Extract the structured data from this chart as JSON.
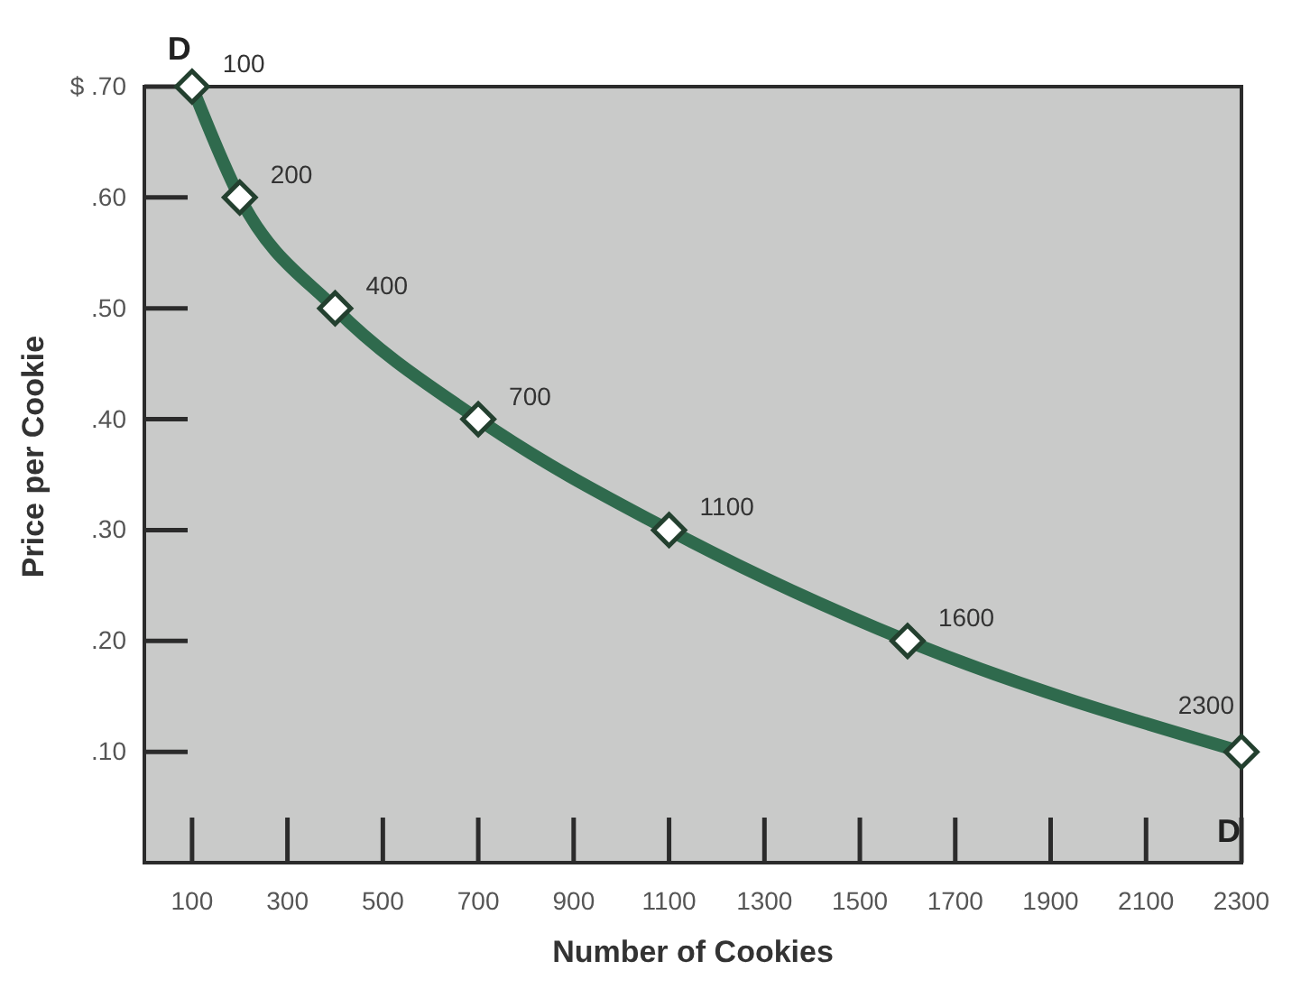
{
  "chart_data": {
    "type": "line",
    "xlabel": "Number of Cookies",
    "ylabel": "Price per Cookie",
    "x": [
      100,
      200,
      400,
      700,
      1100,
      1600,
      2300
    ],
    "series": [
      {
        "name": "D",
        "color": "#2f6a4d",
        "values": [
          0.7,
          0.6,
          0.5,
          0.4,
          0.3,
          0.2,
          0.1
        ]
      }
    ],
    "xlim": [
      0,
      2300
    ],
    "xticks": [
      100,
      300,
      500,
      700,
      900,
      1100,
      1300,
      1500,
      1700,
      1900,
      2100,
      2300
    ],
    "ylim": [
      0,
      0.7
    ],
    "yticks": [
      {
        "value": 0.1,
        "label": ".10"
      },
      {
        "value": 0.2,
        "label": ".20"
      },
      {
        "value": 0.3,
        "label": ".30"
      },
      {
        "value": 0.4,
        "label": ".40"
      },
      {
        "value": 0.5,
        "label": ".50"
      },
      {
        "value": 0.6,
        "label": ".60"
      },
      {
        "value": 0.7,
        "label": "$ .70"
      }
    ],
    "marker": "diamond",
    "line_style": "solid",
    "annotations": [
      {
        "text": "100",
        "x": 100,
        "y": 0.7
      },
      {
        "text": "200",
        "x": 200,
        "y": 0.6
      },
      {
        "text": "400",
        "x": 400,
        "y": 0.5
      },
      {
        "text": "700",
        "x": 700,
        "y": 0.4
      },
      {
        "text": "1100",
        "x": 1100,
        "y": 0.3
      },
      {
        "text": "1600",
        "x": 1600,
        "y": 0.2
      },
      {
        "text": "2300",
        "x": 2300,
        "y": 0.1
      }
    ]
  }
}
